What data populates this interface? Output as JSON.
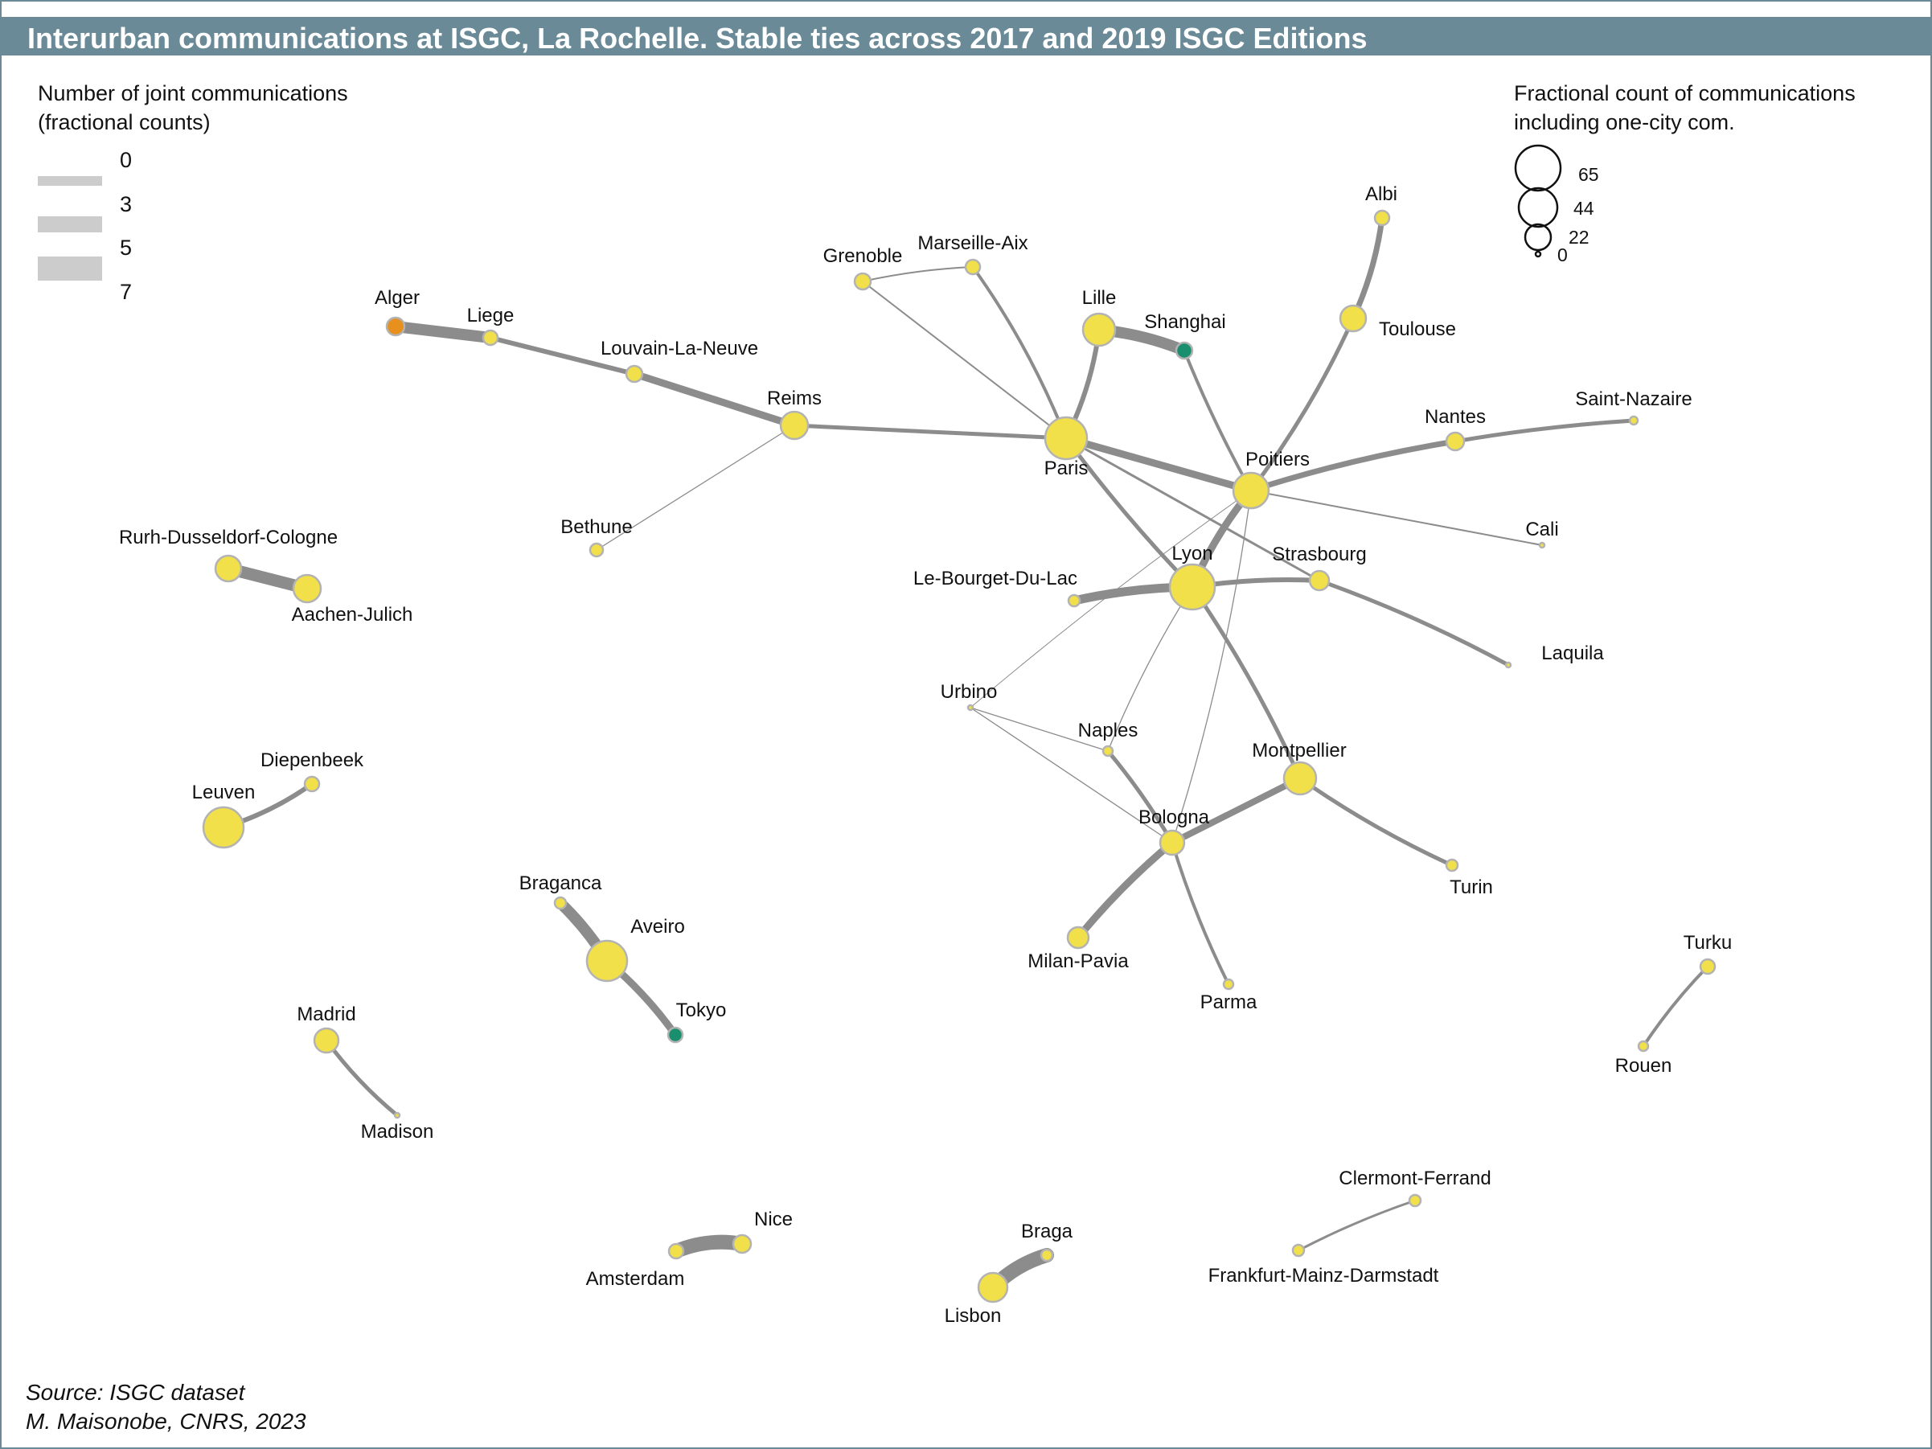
{
  "title": "Interurban communications at ISGC, La Rochelle. Stable ties across 2017 and 2019 ISGC Editions",
  "colors": {
    "header": "#6a8a97",
    "edge": "#8c8c8c",
    "legend_bar": "#cccccc",
    "node_default": "#f1e04a",
    "node_alger": "#e8901e",
    "node_teal": "#1a8f6e",
    "node_stroke": "#b3b3b3"
  },
  "legend_edges": {
    "title_line1": "Number of joint communications",
    "title_line2": "(fractional counts)",
    "items": [
      {
        "label": "0",
        "value": 0
      },
      {
        "label": "3",
        "value": 3
      },
      {
        "label": "5",
        "value": 5
      },
      {
        "label": "7",
        "value": 7
      }
    ]
  },
  "legend_nodes": {
    "title_line1": "Fractional count of communications",
    "title_line2": "including one-city com.",
    "items": [
      {
        "label": "65",
        "value": 65
      },
      {
        "label": "44",
        "value": 44
      },
      {
        "label": "22",
        "value": 22
      },
      {
        "label": "0",
        "value": 0
      }
    ]
  },
  "nodes": [
    {
      "id": "Alger",
      "label": "Alger",
      "color": "alger"
    },
    {
      "id": "Liege",
      "label": "Liege"
    },
    {
      "id": "Louvain-La-Neuve",
      "label": "Louvain-La-Neuve"
    },
    {
      "id": "Reims",
      "label": "Reims"
    },
    {
      "id": "Bethune",
      "label": "Bethune"
    },
    {
      "id": "Grenoble",
      "label": "Grenoble"
    },
    {
      "id": "Marseille-Aix",
      "label": "Marseille-Aix"
    },
    {
      "id": "Lille",
      "label": "Lille"
    },
    {
      "id": "Shanghai",
      "label": "Shanghai",
      "color": "teal"
    },
    {
      "id": "Paris",
      "label": "Paris"
    },
    {
      "id": "Albi",
      "label": "Albi"
    },
    {
      "id": "Toulouse",
      "label": "Toulouse"
    },
    {
      "id": "Poitiers",
      "label": "Poitiers"
    },
    {
      "id": "Nantes",
      "label": "Nantes"
    },
    {
      "id": "Saint-Nazaire",
      "label": "Saint-Nazaire"
    },
    {
      "id": "Cali",
      "label": "Cali"
    },
    {
      "id": "Lyon",
      "label": "Lyon"
    },
    {
      "id": "Strasbourg",
      "label": "Strasbourg"
    },
    {
      "id": "Le-Bourget-Du-Lac",
      "label": "Le-Bourget-Du-Lac"
    },
    {
      "id": "Laquila",
      "label": "Laquila"
    },
    {
      "id": "Urbino",
      "label": "Urbino"
    },
    {
      "id": "Naples",
      "label": "Naples"
    },
    {
      "id": "Montpellier",
      "label": "Montpellier"
    },
    {
      "id": "Bologna",
      "label": "Bologna"
    },
    {
      "id": "Turin",
      "label": "Turin"
    },
    {
      "id": "Milan-Pavia",
      "label": "Milan-Pavia"
    },
    {
      "id": "Parma",
      "label": "Parma"
    },
    {
      "id": "Rurh-Dusseldorf-Cologne",
      "label": "Rurh-Dusseldorf-Cologne"
    },
    {
      "id": "Aachen-Julich",
      "label": "Aachen-Julich"
    },
    {
      "id": "Diepenbeek",
      "label": "Diepenbeek"
    },
    {
      "id": "Leuven",
      "label": "Leuven"
    },
    {
      "id": "Braganca",
      "label": "Braganca"
    },
    {
      "id": "Aveiro",
      "label": "Aveiro"
    },
    {
      "id": "Tokyo",
      "label": "Tokyo",
      "color": "teal"
    },
    {
      "id": "Madrid",
      "label": "Madrid"
    },
    {
      "id": "Madison",
      "label": "Madison"
    },
    {
      "id": "Nice",
      "label": "Nice"
    },
    {
      "id": "Amsterdam",
      "label": "Amsterdam"
    },
    {
      "id": "Braga",
      "label": "Braga"
    },
    {
      "id": "Lisbon",
      "label": "Lisbon"
    },
    {
      "id": "Clermont-Ferrand",
      "label": "Clermont-Ferrand"
    },
    {
      "id": "Frankfurt-Mainz-Darmstadt",
      "label": "Frankfurt-Mainz-Darmstadt"
    },
    {
      "id": "Turku",
      "label": "Turku"
    },
    {
      "id": "Rouen",
      "label": "Rouen"
    }
  ],
  "edges": [
    {
      "source": "Alger",
      "target": "Liege"
    },
    {
      "source": "Liege",
      "target": "Louvain-La-Neuve"
    },
    {
      "source": "Louvain-La-Neuve",
      "target": "Reims"
    },
    {
      "source": "Reims",
      "target": "Paris"
    },
    {
      "source": "Reims",
      "target": "Bethune"
    },
    {
      "source": "Grenoble",
      "target": "Marseille-Aix"
    },
    {
      "source": "Grenoble",
      "target": "Paris"
    },
    {
      "source": "Marseille-Aix",
      "target": "Paris"
    },
    {
      "source": "Lille",
      "target": "Paris"
    },
    {
      "source": "Lille",
      "target": "Shanghai"
    },
    {
      "source": "Shanghai",
      "target": "Poitiers"
    },
    {
      "source": "Paris",
      "target": "Poitiers"
    },
    {
      "source": "Paris",
      "target": "Lyon"
    },
    {
      "source": "Paris",
      "target": "Strasbourg"
    },
    {
      "source": "Albi",
      "target": "Toulouse"
    },
    {
      "source": "Toulouse",
      "target": "Poitiers"
    },
    {
      "source": "Poitiers",
      "target": "Nantes"
    },
    {
      "source": "Nantes",
      "target": "Saint-Nazaire"
    },
    {
      "source": "Poitiers",
      "target": "Cali"
    },
    {
      "source": "Poitiers",
      "target": "Lyon"
    },
    {
      "source": "Poitiers",
      "target": "Urbino"
    },
    {
      "source": "Poitiers",
      "target": "Bologna"
    },
    {
      "source": "Le-Bourget-Du-Lac",
      "target": "Lyon"
    },
    {
      "source": "Lyon",
      "target": "Strasbourg"
    },
    {
      "source": "Strasbourg",
      "target": "Laquila"
    },
    {
      "source": "Lyon",
      "target": "Montpellier"
    },
    {
      "source": "Lyon",
      "target": "Naples"
    },
    {
      "source": "Urbino",
      "target": "Naples"
    },
    {
      "source": "Urbino",
      "target": "Bologna"
    },
    {
      "source": "Naples",
      "target": "Bologna"
    },
    {
      "source": "Montpellier",
      "target": "Bologna"
    },
    {
      "source": "Montpellier",
      "target": "Turin"
    },
    {
      "source": "Bologna",
      "target": "Milan-Pavia"
    },
    {
      "source": "Bologna",
      "target": "Parma"
    },
    {
      "source": "Rurh-Dusseldorf-Cologne",
      "target": "Aachen-Julich"
    },
    {
      "source": "Leuven",
      "target": "Diepenbeek"
    },
    {
      "source": "Braganca",
      "target": "Aveiro"
    },
    {
      "source": "Aveiro",
      "target": "Tokyo"
    },
    {
      "source": "Madrid",
      "target": "Madison"
    },
    {
      "source": "Amsterdam",
      "target": "Nice"
    },
    {
      "source": "Lisbon",
      "target": "Braga"
    },
    {
      "source": "Frankfurt-Mainz-Darmstadt",
      "target": "Clermont-Ferrand"
    },
    {
      "source": "Rouen",
      "target": "Turku"
    }
  ],
  "source_line1": "Source: ISGC dataset",
  "source_line2": "M. Maisonobe, CNRS, 2023"
}
